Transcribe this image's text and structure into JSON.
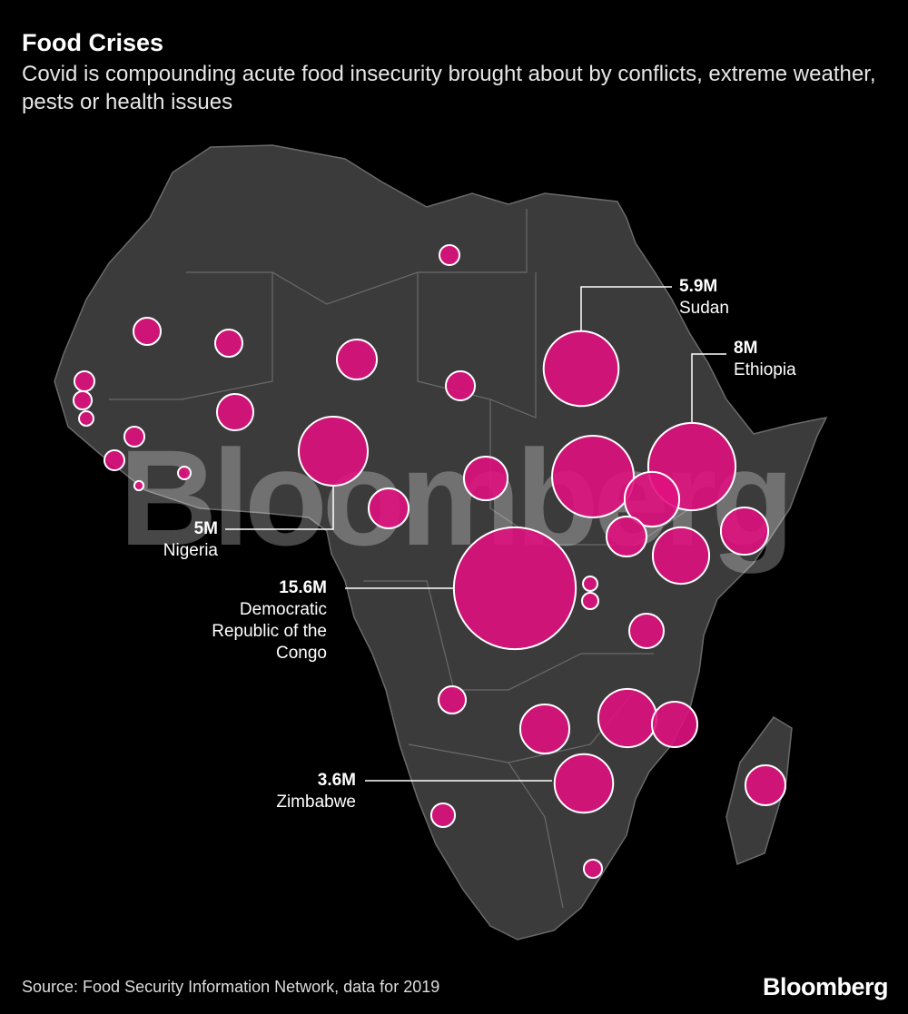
{
  "chart_data": {
    "type": "bubble-map",
    "title": "Food Crises",
    "subtitle": "Covid is compounding acute food insecurity brought about by conflicts, extreme weather, pests or health issues",
    "watermark": "Bloomberg",
    "source": "Source: Food Security Information Network, data for 2019",
    "logo": "Bloomberg",
    "color": "#e0117f",
    "values": [
      0.42,
      0.78,
      0.78,
      1.68,
      0.89,
      5.9,
      0.42,
      0.35,
      0.22,
      1.39,
      5,
      0.42,
      0.42,
      0.17,
      0.09,
      2.0,
      7.0,
      8,
      3.13,
      1.68,
      1.68,
      2.35,
      3.34,
      15.6,
      0.22,
      0.28,
      1.25,
      0.78,
      2.53,
      3.56,
      2.17,
      3.6,
      1.68,
      0.59,
      0.35
    ],
    "value_labels": [
      null,
      null,
      null,
      null,
      null,
      "5.9M",
      null,
      null,
      null,
      null,
      "5M",
      null,
      null,
      null,
      null,
      null,
      null,
      "8M",
      null,
      null,
      null,
      null,
      null,
      "15.6M",
      null,
      null,
      null,
      null,
      null,
      null,
      null,
      "3.6M",
      null,
      null,
      null
    ],
    "names": [
      null,
      null,
      null,
      null,
      null,
      "Sudan",
      null,
      null,
      null,
      null,
      "Nigeria",
      null,
      null,
      null,
      null,
      null,
      null,
      "Ethiopia",
      null,
      null,
      null,
      null,
      null,
      "Democratic Republic of the Congo",
      null,
      null,
      null,
      null,
      null,
      null,
      null,
      "Zimbabwe",
      null,
      null,
      null
    ]
  }
}
